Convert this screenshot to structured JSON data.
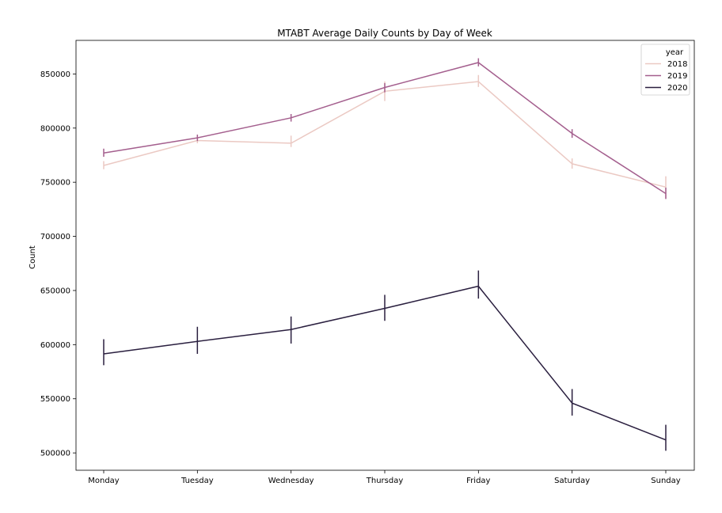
{
  "chart_data": {
    "type": "line",
    "title": "MTABT Average Daily Counts by Day of Week",
    "xlabel": "",
    "ylabel": "Count",
    "categories": [
      "Monday",
      "Tuesday",
      "Wednesday",
      "Thursday",
      "Friday",
      "Saturday",
      "Sunday"
    ],
    "ylim": [
      484000,
      881000
    ],
    "yticks": [
      500000,
      550000,
      600000,
      650000,
      700000,
      750000,
      800000,
      850000
    ],
    "ytick_labels": [
      "500000",
      "550000",
      "600000",
      "650000",
      "700000",
      "750000",
      "800000",
      "850000"
    ],
    "grid": false,
    "legend": {
      "title": "year",
      "placement": "top-right"
    },
    "series": [
      {
        "name": "2018",
        "color": "#ebc9c3",
        "values": [
          765500,
          788500,
          786000,
          834000,
          843000,
          767000,
          745500
        ],
        "err_low": [
          762000,
          786000,
          782500,
          825000,
          838000,
          762500,
          735000
        ],
        "err_high": [
          769500,
          791500,
          793000,
          843000,
          849000,
          772000,
          755500
        ]
      },
      {
        "name": "2019",
        "color": "#a45f8e",
        "values": [
          777000,
          791000,
          809500,
          837500,
          860500,
          795000,
          739500
        ],
        "err_low": [
          773500,
          788000,
          806000,
          833000,
          857000,
          791000,
          734500
        ],
        "err_high": [
          781000,
          794000,
          813000,
          841500,
          864500,
          799000,
          745000
        ]
      },
      {
        "name": "2020",
        "color": "#2a1f3f",
        "values": [
          591500,
          603000,
          614000,
          633500,
          654000,
          546000,
          512000
        ],
        "err_low": [
          581000,
          591500,
          601000,
          622000,
          642500,
          534500,
          502000
        ],
        "err_high": [
          605000,
          616500,
          626000,
          646000,
          668500,
          559000,
          526000
        ]
      }
    ]
  }
}
